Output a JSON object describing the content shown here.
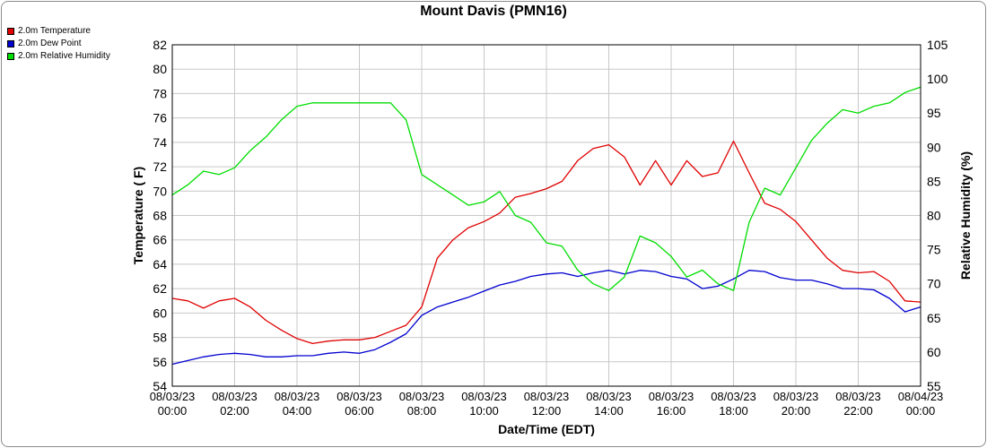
{
  "chart_data": {
    "type": "line",
    "title": "Mount Davis (PMN16)",
    "xlabel": "Date/Time (EDT)",
    "ylabel": "Temperature ( F)",
    "y2label": "Relative Humidity (%)",
    "ylim": [
      54,
      82
    ],
    "y2lim": [
      55,
      105
    ],
    "yticks": [
      54,
      56,
      58,
      60,
      62,
      64,
      66,
      68,
      70,
      72,
      74,
      76,
      78,
      80,
      82
    ],
    "y2ticks": [
      55,
      60,
      65,
      70,
      75,
      80,
      85,
      90,
      95,
      100,
      105
    ],
    "xlim": [
      0,
      24
    ],
    "xticks": [
      {
        "date": "08/03/23",
        "time": "00:00"
      },
      {
        "date": "08/03/23",
        "time": "02:00"
      },
      {
        "date": "08/03/23",
        "time": "04:00"
      },
      {
        "date": "08/03/23",
        "time": "06:00"
      },
      {
        "date": "08/03/23",
        "time": "08:00"
      },
      {
        "date": "08/03/23",
        "time": "10:00"
      },
      {
        "date": "08/03/23",
        "time": "12:00"
      },
      {
        "date": "08/03/23",
        "time": "14:00"
      },
      {
        "date": "08/03/23",
        "time": "16:00"
      },
      {
        "date": "08/03/23",
        "time": "18:00"
      },
      {
        "date": "08/03/23",
        "time": "20:00"
      },
      {
        "date": "08/03/23",
        "time": "22:00"
      },
      {
        "date": "08/04/23",
        "time": "00:00"
      }
    ],
    "grid": true,
    "legend_position": "top-left",
    "series": [
      {
        "name": "2.0m Temperature",
        "color": "#e00000",
        "axis": "left",
        "x": [
          "00:00",
          "00:30",
          "01:00",
          "01:30",
          "02:00",
          "02:30",
          "03:00",
          "03:30",
          "04:00",
          "04:30",
          "05:00",
          "05:30",
          "06:00",
          "06:30",
          "07:00",
          "07:30",
          "08:00",
          "08:30",
          "09:00",
          "09:30",
          "10:00",
          "10:30",
          "11:00",
          "11:30",
          "12:00",
          "12:30",
          "13:00",
          "13:30",
          "14:00",
          "14:30",
          "15:00",
          "15:30",
          "16:00",
          "16:30",
          "17:00",
          "17:30",
          "18:00",
          "18:30",
          "19:00",
          "19:30",
          "20:00",
          "20:30",
          "21:00",
          "21:30",
          "22:00",
          "22:30",
          "23:00",
          "23:30",
          "24:00"
        ],
        "values": [
          61.2,
          61.0,
          60.4,
          61.0,
          61.2,
          60.5,
          59.4,
          58.6,
          57.9,
          57.5,
          57.7,
          57.8,
          57.8,
          58.0,
          58.5,
          59.0,
          60.5,
          64.5,
          66.0,
          67.0,
          67.5,
          68.2,
          69.5,
          69.8,
          70.2,
          70.8,
          72.5,
          73.5,
          73.8,
          72.8,
          70.5,
          72.5,
          70.5,
          72.5,
          71.2,
          71.5,
          74.1,
          71.5,
          69.0,
          68.5,
          67.5,
          66.0,
          64.5,
          63.5,
          63.3,
          63.4,
          62.6,
          61.0,
          60.9
        ]
      },
      {
        "name": "2.0m Dew Point",
        "color": "#0000d0",
        "axis": "left",
        "x": [
          "00:00",
          "00:30",
          "01:00",
          "01:30",
          "02:00",
          "02:30",
          "03:00",
          "03:30",
          "04:00",
          "04:30",
          "05:00",
          "05:30",
          "06:00",
          "06:30",
          "07:00",
          "07:30",
          "08:00",
          "08:30",
          "09:00",
          "09:30",
          "10:00",
          "10:30",
          "11:00",
          "11:30",
          "12:00",
          "12:30",
          "13:00",
          "13:30",
          "14:00",
          "14:30",
          "15:00",
          "15:30",
          "16:00",
          "16:30",
          "17:00",
          "17:30",
          "18:00",
          "18:30",
          "19:00",
          "19:30",
          "20:00",
          "20:30",
          "21:00",
          "21:30",
          "22:00",
          "22:30",
          "23:00",
          "23:30",
          "24:00"
        ],
        "values": [
          55.8,
          56.1,
          56.4,
          56.6,
          56.7,
          56.6,
          56.4,
          56.4,
          56.5,
          56.5,
          56.7,
          56.8,
          56.7,
          57.0,
          57.6,
          58.3,
          59.8,
          60.5,
          60.9,
          61.3,
          61.8,
          62.3,
          62.6,
          63.0,
          63.2,
          63.3,
          63.0,
          63.3,
          63.5,
          63.2,
          63.5,
          63.4,
          63.0,
          62.8,
          62.0,
          62.2,
          62.8,
          63.5,
          63.4,
          62.9,
          62.7,
          62.7,
          62.4,
          62.0,
          62.0,
          61.9,
          61.2,
          60.1,
          60.5
        ]
      },
      {
        "name": "2.0m Relative Humidity",
        "color": "#00dd00",
        "axis": "right",
        "x": [
          "00:00",
          "00:30",
          "01:00",
          "01:30",
          "02:00",
          "02:30",
          "03:00",
          "03:30",
          "04:00",
          "04:30",
          "05:00",
          "05:30",
          "06:00",
          "06:30",
          "07:00",
          "07:30",
          "08:00",
          "08:30",
          "09:00",
          "09:30",
          "10:00",
          "10:30",
          "11:00",
          "11:30",
          "12:00",
          "12:30",
          "13:00",
          "13:30",
          "14:00",
          "14:30",
          "15:00",
          "15:30",
          "16:00",
          "16:30",
          "17:00",
          "17:30",
          "18:00",
          "18:30",
          "19:00",
          "19:30",
          "20:00",
          "20:30",
          "21:00",
          "21:30",
          "22:00",
          "22:30",
          "23:00",
          "23:30",
          "24:00"
        ],
        "values": [
          83.0,
          84.5,
          86.5,
          86.0,
          87.0,
          89.5,
          91.5,
          94.0,
          96.0,
          96.5,
          96.5,
          96.5,
          96.5,
          96.5,
          96.5,
          94.0,
          86.0,
          84.5,
          83.0,
          81.5,
          82.0,
          83.5,
          80.0,
          79.0,
          76.0,
          75.5,
          72.0,
          70.0,
          69.0,
          71.0,
          77.0,
          76.0,
          74.0,
          71.0,
          72.0,
          70.0,
          69.0,
          79.0,
          84.0,
          83.0,
          87.0,
          91.0,
          93.5,
          95.5,
          95.0,
          96.0,
          96.5,
          98.0,
          98.8
        ]
      }
    ]
  }
}
